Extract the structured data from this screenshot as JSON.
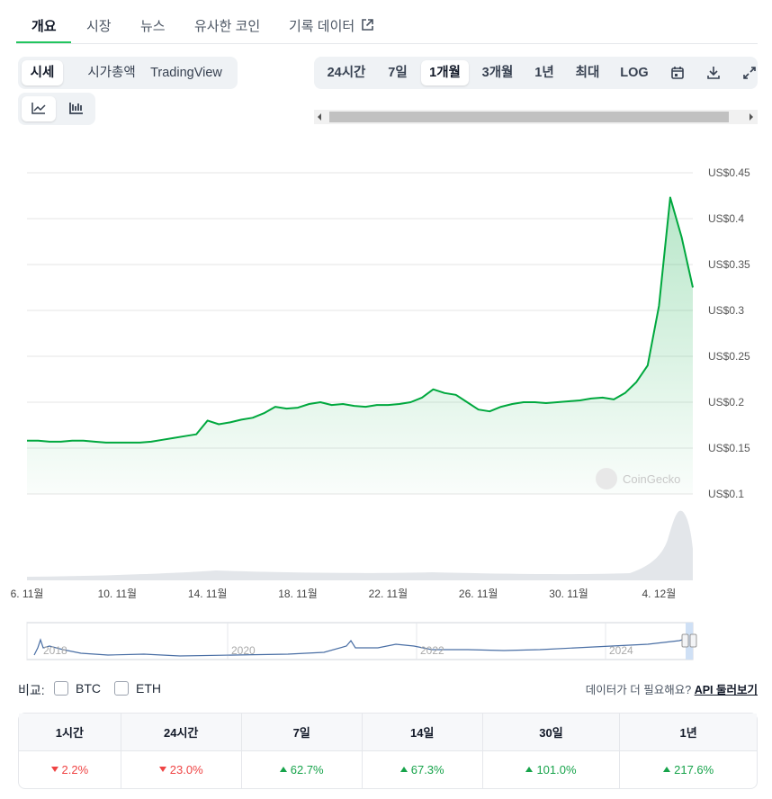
{
  "tabs": [
    "개요",
    "시장",
    "뉴스",
    "유사한 코인",
    "기록 데이터"
  ],
  "chart_mode": [
    "시세",
    "시가총액",
    "TradingView"
  ],
  "ranges": [
    "24시간",
    "7일",
    "1개월",
    "3개월",
    "1년",
    "최대",
    "LOG"
  ],
  "chart_data": {
    "type": "line",
    "color": "#00a83e",
    "grid": true,
    "watermark": "CoinGecko",
    "categories": [
      "6. 11월",
      null,
      null,
      null,
      null,
      null,
      null,
      null,
      "10. 11월",
      null,
      null,
      null,
      null,
      null,
      null,
      null,
      "14. 11월",
      null,
      null,
      null,
      null,
      null,
      null,
      null,
      "18. 11월",
      null,
      null,
      null,
      null,
      null,
      null,
      null,
      "22. 11월",
      null,
      null,
      null,
      null,
      null,
      null,
      null,
      "26. 11월",
      null,
      null,
      null,
      null,
      null,
      null,
      null,
      "30. 11월",
      null,
      null,
      null,
      null,
      null,
      null,
      null,
      "4. 12월",
      null,
      null,
      null
    ],
    "series": [
      {
        "name": "Price",
        "color": "#00a83e",
        "values": [
          0.158,
          0.158,
          0.157,
          0.157,
          0.158,
          0.158,
          0.157,
          0.156,
          0.156,
          0.156,
          0.156,
          0.157,
          0.159,
          0.161,
          0.163,
          0.165,
          0.18,
          0.176,
          0.178,
          0.181,
          0.183,
          0.188,
          0.195,
          0.193,
          0.194,
          0.198,
          0.2,
          0.197,
          0.198,
          0.196,
          0.195,
          0.197,
          0.197,
          0.198,
          0.2,
          0.205,
          0.214,
          0.21,
          0.208,
          0.2,
          0.192,
          0.19,
          0.195,
          0.198,
          0.2,
          0.2,
          0.199,
          0.2,
          0.201,
          0.202,
          0.204,
          0.205,
          0.203,
          0.21,
          0.222,
          0.24,
          0.305,
          0.423,
          0.38,
          0.325
        ]
      }
    ],
    "ylim": [
      0.1,
      0.45
    ],
    "yticks": [
      {
        "value": 0.1,
        "label": "US$0.1"
      },
      {
        "value": 0.15,
        "label": "US$0.15"
      },
      {
        "value": 0.2,
        "label": "US$0.2"
      },
      {
        "value": 0.25,
        "label": "US$0.25"
      },
      {
        "value": 0.3,
        "label": "US$0.3"
      },
      {
        "value": 0.35,
        "label": "US$0.35"
      },
      {
        "value": 0.4,
        "label": "US$0.4"
      },
      {
        "value": 0.45,
        "label": "US$0.45"
      }
    ],
    "navigator_years": [
      "2018",
      "2020",
      "2022",
      "2024"
    ]
  },
  "compare": {
    "label": "비교:",
    "options": [
      "BTC",
      "ETH"
    ],
    "prompt": "데이터가 더 필요해요?",
    "link": "API 둘러보기"
  },
  "table": {
    "headers": [
      "1시간",
      "24시간",
      "7일",
      "14일",
      "30일",
      "1년"
    ],
    "rows": [
      [
        {
          "text": "2.2%",
          "direction": "down"
        },
        {
          "text": "23.0%",
          "direction": "down"
        },
        {
          "text": "62.7%",
          "direction": "up"
        },
        {
          "text": "67.3%",
          "direction": "up"
        },
        {
          "text": "101.0%",
          "direction": "up"
        },
        {
          "text": "217.6%",
          "direction": "up"
        }
      ]
    ]
  }
}
